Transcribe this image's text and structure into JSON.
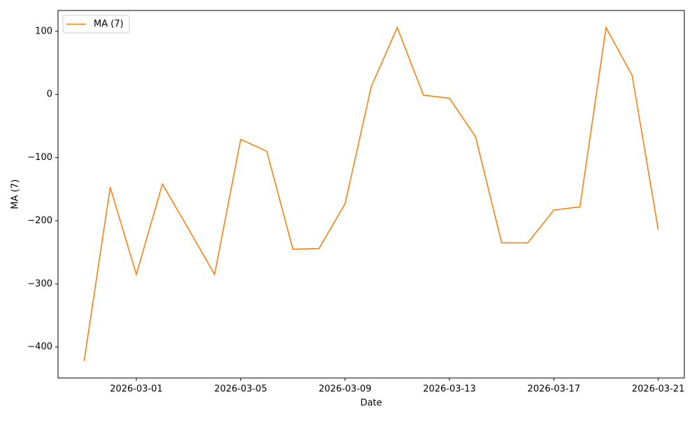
{
  "chart_data": {
    "type": "line",
    "x_label": "Date",
    "y_label": "MA (7)",
    "x": [
      "2026-02-27",
      "2026-02-28",
      "2026-03-01",
      "2026-03-02",
      "2026-03-03",
      "2026-03-04",
      "2026-03-05",
      "2026-03-06",
      "2026-03-07",
      "2026-03-08",
      "2026-03-09",
      "2026-03-10",
      "2026-03-11",
      "2026-03-12",
      "2026-03-13",
      "2026-03-14",
      "2026-03-15",
      "2026-03-16",
      "2026-03-17",
      "2026-03-18",
      "2026-03-19",
      "2026-03-20",
      "2026-03-21"
    ],
    "series": [
      {
        "name": "MA (7)",
        "color": "#ff7f0e",
        "values": [
          -422,
          -147,
          -285,
          -142,
          -213,
          -285,
          -71,
          -90,
          -245,
          -244,
          -173,
          12,
          106,
          -1,
          -6,
          -67,
          -235,
          -235,
          -183,
          -178,
          106,
          30,
          -214
        ]
      }
    ],
    "xlim": [
      "2026-02-26",
      "2026-03-22"
    ],
    "xticks": [
      "2026-03-01",
      "2026-03-05",
      "2026-03-09",
      "2026-03-13",
      "2026-03-17",
      "2026-03-21"
    ],
    "ylim": [
      -449,
      133
    ],
    "yticks": [
      {
        "value": -400,
        "label": "−400"
      },
      {
        "value": -300,
        "label": "−300"
      },
      {
        "value": -200,
        "label": "−200"
      },
      {
        "value": -100,
        "label": "−100"
      },
      0,
      100
    ],
    "legend": "upper left",
    "grid": false
  }
}
